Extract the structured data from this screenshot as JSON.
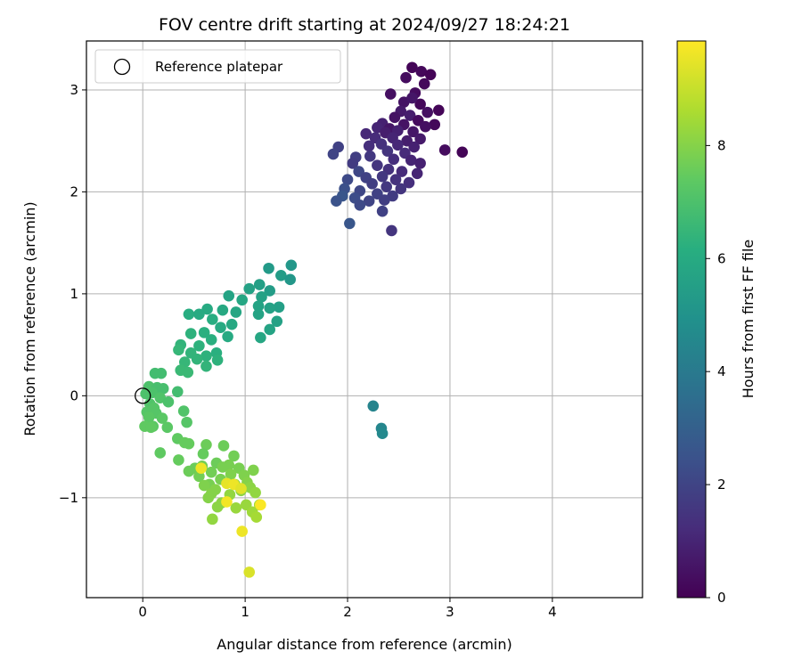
{
  "chart_data": {
    "type": "scatter",
    "title": "FOV centre drift starting at 2024/09/27 18:24:21",
    "xlabel": "Angular distance from reference (arcmin)",
    "ylabel": "Rotation from reference (arcmin)",
    "xlim": [
      -0.55,
      4.88
    ],
    "ylim": [
      -1.98,
      3.48
    ],
    "xticks": [
      0,
      1,
      2,
      3,
      4
    ],
    "yticks": [
      -1,
      0,
      1,
      2,
      3
    ],
    "grid": true,
    "legend": {
      "label": "Reference platepar",
      "position": "top-left"
    },
    "reference_point": {
      "x": 0,
      "y": 0
    },
    "colorbar": {
      "label": "Hours from first FF file",
      "colormap": "viridis",
      "range": [
        0,
        9.85
      ],
      "ticks": [
        0,
        2,
        4,
        6,
        8
      ]
    },
    "points": [
      [
        2.63,
        3.22,
        0.1
      ],
      [
        2.72,
        3.18,
        0.2
      ],
      [
        2.81,
        3.15,
        0.1
      ],
      [
        2.57,
        3.12,
        0.3
      ],
      [
        2.75,
        3.06,
        0.2
      ],
      [
        2.42,
        2.96,
        0.4
      ],
      [
        2.66,
        2.97,
        0.3
      ],
      [
        2.55,
        2.88,
        0.5
      ],
      [
        2.71,
        2.86,
        0.2
      ],
      [
        2.63,
        2.92,
        0.6
      ],
      [
        2.89,
        2.8,
        0.1
      ],
      [
        2.78,
        2.78,
        0.4
      ],
      [
        2.52,
        2.79,
        0.7
      ],
      [
        2.46,
        2.73,
        0.5
      ],
      [
        2.61,
        2.75,
        0.8
      ],
      [
        2.69,
        2.7,
        0.3
      ],
      [
        2.85,
        2.66,
        0.2
      ],
      [
        2.34,
        2.67,
        0.9
      ],
      [
        2.29,
        2.63,
        1.0
      ],
      [
        2.41,
        2.62,
        0.6
      ],
      [
        2.55,
        2.66,
        0.5
      ],
      [
        2.76,
        2.64,
        0.4
      ],
      [
        2.18,
        2.57,
        1.1
      ],
      [
        2.37,
        2.58,
        0.8
      ],
      [
        2.49,
        2.6,
        0.9
      ],
      [
        2.64,
        2.59,
        0.6
      ],
      [
        2.71,
        2.52,
        0.7
      ],
      [
        2.27,
        2.53,
        1.2
      ],
      [
        2.44,
        2.53,
        1.0
      ],
      [
        2.58,
        2.5,
        0.8
      ],
      [
        2.95,
        2.41,
        0.3
      ],
      [
        3.12,
        2.39,
        0.1
      ],
      [
        2.21,
        2.45,
        1.3
      ],
      [
        2.33,
        2.47,
        1.4
      ],
      [
        2.49,
        2.46,
        1.1
      ],
      [
        2.65,
        2.44,
        0.9
      ],
      [
        1.91,
        2.44,
        1.9
      ],
      [
        2.39,
        2.4,
        1.5
      ],
      [
        2.56,
        2.38,
        1.2
      ],
      [
        1.86,
        2.37,
        2.0
      ],
      [
        2.08,
        2.34,
        1.8
      ],
      [
        2.22,
        2.35,
        1.6
      ],
      [
        2.45,
        2.32,
        1.3
      ],
      [
        2.62,
        2.31,
        1.0
      ],
      [
        2.71,
        2.28,
        0.9
      ],
      [
        2.05,
        2.28,
        1.7
      ],
      [
        2.29,
        2.26,
        1.5
      ],
      [
        2.4,
        2.22,
        1.4
      ],
      [
        2.53,
        2.2,
        1.2
      ],
      [
        2.68,
        2.18,
        1.0
      ],
      [
        2.11,
        2.2,
        2.1
      ],
      [
        2.18,
        2.14,
        1.9
      ],
      [
        2.34,
        2.15,
        1.6
      ],
      [
        2.47,
        2.12,
        1.4
      ],
      [
        2.6,
        2.09,
        1.3
      ],
      [
        2.0,
        2.12,
        2.2
      ],
      [
        2.24,
        2.08,
        1.8
      ],
      [
        2.38,
        2.05,
        1.6
      ],
      [
        2.52,
        2.03,
        1.5
      ],
      [
        1.97,
        2.03,
        2.4
      ],
      [
        2.12,
        2.01,
        2.1
      ],
      [
        2.29,
        1.98,
        1.9
      ],
      [
        2.44,
        1.96,
        1.7
      ],
      [
        1.95,
        1.96,
        2.6
      ],
      [
        2.07,
        1.94,
        2.3
      ],
      [
        2.21,
        1.91,
        2.0
      ],
      [
        2.36,
        1.92,
        1.8
      ],
      [
        1.89,
        1.91,
        2.5
      ],
      [
        2.12,
        1.87,
        2.2
      ],
      [
        2.34,
        1.81,
        1.9
      ],
      [
        2.02,
        1.69,
        2.6
      ],
      [
        2.43,
        1.62,
        1.5
      ],
      [
        2.25,
        -0.1,
        4.4
      ],
      [
        2.33,
        -0.32,
        4.5
      ],
      [
        2.34,
        -0.37,
        4.6
      ],
      [
        1.45,
        1.28,
        5.2
      ],
      [
        1.23,
        1.25,
        5.3
      ],
      [
        1.35,
        1.18,
        5.4
      ],
      [
        1.44,
        1.14,
        5.2
      ],
      [
        1.14,
        1.09,
        5.5
      ],
      [
        1.04,
        1.05,
        5.6
      ],
      [
        1.24,
        1.03,
        5.4
      ],
      [
        0.84,
        0.98,
        5.7
      ],
      [
        1.16,
        0.97,
        5.6
      ],
      [
        0.97,
        0.94,
        5.8
      ],
      [
        1.33,
        0.87,
        5.5
      ],
      [
        1.13,
        0.88,
        5.7
      ],
      [
        1.24,
        0.86,
        5.6
      ],
      [
        0.78,
        0.84,
        5.9
      ],
      [
        0.91,
        0.82,
        5.8
      ],
      [
        0.63,
        0.85,
        6.0
      ],
      [
        0.45,
        0.8,
        6.1
      ],
      [
        0.55,
        0.8,
        6.0
      ],
      [
        1.13,
        0.8,
        5.7
      ],
      [
        0.68,
        0.75,
        6.1
      ],
      [
        1.31,
        0.73,
        5.6
      ],
      [
        0.87,
        0.7,
        5.9
      ],
      [
        0.76,
        0.67,
        6.0
      ],
      [
        1.24,
        0.65,
        5.7
      ],
      [
        0.6,
        0.62,
        6.2
      ],
      [
        0.47,
        0.61,
        6.3
      ],
      [
        0.83,
        0.58,
        6.0
      ],
      [
        1.15,
        0.57,
        5.8
      ],
      [
        0.67,
        0.55,
        6.2
      ],
      [
        0.37,
        0.5,
        6.4
      ],
      [
        0.55,
        0.49,
        6.3
      ],
      [
        0.35,
        0.45,
        6.5
      ],
      [
        0.47,
        0.42,
        6.4
      ],
      [
        0.72,
        0.42,
        6.2
      ],
      [
        0.62,
        0.39,
        6.3
      ],
      [
        0.53,
        0.36,
        6.4
      ],
      [
        0.41,
        0.33,
        6.5
      ],
      [
        0.73,
        0.35,
        6.3
      ],
      [
        0.62,
        0.29,
        6.4
      ],
      [
        0.37,
        0.25,
        6.6
      ],
      [
        0.44,
        0.23,
        6.6
      ],
      [
        0.12,
        0.22,
        6.8
      ],
      [
        0.18,
        0.22,
        6.8
      ],
      [
        0.06,
        0.09,
        7.0
      ],
      [
        0.14,
        0.08,
        6.9
      ],
      [
        0.2,
        0.07,
        6.9
      ],
      [
        0.34,
        0.04,
        6.8
      ],
      [
        0.09,
        0.03,
        7.0
      ],
      [
        0.03,
        0.02,
        7.0
      ],
      [
        0.17,
        -0.02,
        7.1
      ],
      [
        0.25,
        -0.06,
        7.0
      ],
      [
        0.07,
        -0.08,
        7.1
      ],
      [
        0.11,
        -0.12,
        7.2
      ],
      [
        0.04,
        -0.16,
        7.2
      ],
      [
        0.13,
        -0.17,
        7.2
      ],
      [
        0.4,
        -0.15,
        7.1
      ],
      [
        0.06,
        -0.21,
        7.3
      ],
      [
        0.19,
        -0.22,
        7.3
      ],
      [
        0.43,
        -0.26,
        7.2
      ],
      [
        0.1,
        -0.3,
        7.3
      ],
      [
        0.02,
        -0.3,
        7.4
      ],
      [
        0.08,
        -0.31,
        7.4
      ],
      [
        0.24,
        -0.31,
        7.3
      ],
      [
        0.34,
        -0.42,
        7.4
      ],
      [
        0.45,
        -0.47,
        7.5
      ],
      [
        0.41,
        -0.46,
        7.5
      ],
      [
        0.62,
        -0.48,
        7.6
      ],
      [
        0.79,
        -0.49,
        7.6
      ],
      [
        0.59,
        -0.57,
        7.5
      ],
      [
        0.17,
        -0.56,
        7.4
      ],
      [
        0.89,
        -0.59,
        7.7
      ],
      [
        0.72,
        -0.66,
        7.6
      ],
      [
        0.35,
        -0.63,
        7.5
      ],
      [
        0.84,
        -0.68,
        7.8
      ],
      [
        0.51,
        -0.71,
        7.6
      ],
      [
        0.78,
        -0.7,
        7.8
      ],
      [
        0.94,
        -0.71,
        7.8
      ],
      [
        0.58,
        -0.69,
        7.7
      ],
      [
        1.08,
        -0.73,
        7.9
      ],
      [
        0.45,
        -0.74,
        7.6
      ],
      [
        0.67,
        -0.75,
        7.7
      ],
      [
        0.86,
        -0.77,
        7.9
      ],
      [
        0.99,
        -0.78,
        7.9
      ],
      [
        0.55,
        -0.79,
        7.7
      ],
      [
        0.76,
        -0.82,
        7.8
      ],
      [
        1.02,
        -0.85,
        8.0
      ],
      [
        0.65,
        -0.87,
        7.8
      ],
      [
        0.9,
        -0.87,
        8.0
      ],
      [
        1.05,
        -0.9,
        8.1
      ],
      [
        0.6,
        -0.88,
        7.9
      ],
      [
        0.71,
        -0.92,
        8.0
      ],
      [
        0.96,
        -0.93,
        8.1
      ],
      [
        1.1,
        -0.95,
        8.2
      ],
      [
        0.67,
        -0.96,
        8.0
      ],
      [
        0.85,
        -0.97,
        8.2
      ],
      [
        0.64,
        -1.0,
        8.0
      ],
      [
        0.77,
        -1.05,
        8.1
      ],
      [
        1.01,
        -1.07,
        8.3
      ],
      [
        1.14,
        -1.07,
        8.4
      ],
      [
        0.73,
        -1.09,
        8.1
      ],
      [
        0.91,
        -1.1,
        8.3
      ],
      [
        1.07,
        -1.14,
        8.4
      ],
      [
        1.11,
        -1.19,
        8.5
      ],
      [
        0.68,
        -1.21,
        8.2
      ],
      [
        0.57,
        -0.71,
        9.6
      ],
      [
        0.82,
        -0.86,
        9.5
      ],
      [
        0.89,
        -0.87,
        9.6
      ],
      [
        0.96,
        -0.91,
        9.4
      ],
      [
        0.82,
        -1.04,
        9.7
      ],
      [
        1.15,
        -1.07,
        9.8
      ],
      [
        0.97,
        -1.33,
        9.6
      ],
      [
        1.04,
        -1.73,
        9.3
      ]
    ]
  }
}
